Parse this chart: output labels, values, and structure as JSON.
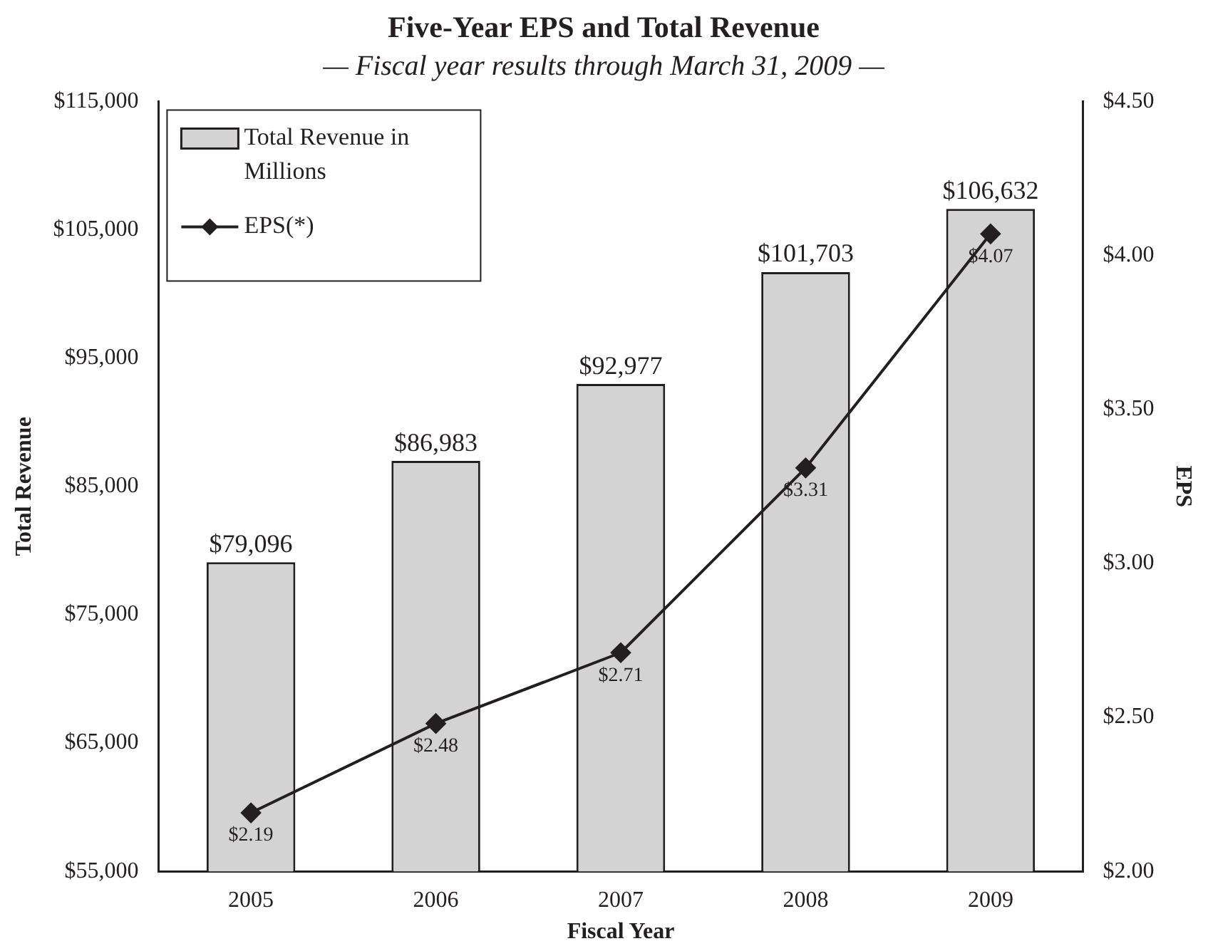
{
  "chart_data": {
    "type": "bar",
    "title": "Five-Year EPS and Total Revenue",
    "subtitle": "— Fiscal year results through March 31, 2009 —",
    "xlabel": "Fiscal Year",
    "ylabel": "Total Revenue",
    "y2label": "EPS",
    "categories": [
      "2005",
      "2006",
      "2007",
      "2008",
      "2009"
    ],
    "series": [
      {
        "name": "Total Revenue in Millions",
        "color": "#d3d3d3",
        "values": [
          79096,
          86983,
          92977,
          101703,
          106632
        ],
        "value_labels": [
          "$79,096",
          "$86,983",
          "$92,977",
          "$101,703",
          "$106,632"
        ]
      },
      {
        "name": "EPS(*)",
        "type": "line",
        "axis": "y2",
        "color": "#231f20",
        "marker": "diamond",
        "values": [
          2.19,
          2.48,
          2.71,
          3.31,
          4.07
        ],
        "value_labels": [
          "$2.19",
          "$2.48",
          "$2.71",
          "$3.31",
          "$4.07"
        ]
      }
    ],
    "ylim": [
      55000,
      115000
    ],
    "yticks": [
      {
        "value": 55000,
        "label": "$55,000"
      },
      {
        "value": 65000,
        "label": "$65,000"
      },
      {
        "value": 75000,
        "label": "$75,000"
      },
      {
        "value": 85000,
        "label": "$85,000"
      },
      {
        "value": 95000,
        "label": "$95,000"
      },
      {
        "value": 105000,
        "label": "$105,000"
      },
      {
        "value": 115000,
        "label": "$115,000"
      }
    ],
    "y2lim": [
      2,
      4.5
    ],
    "y2ticks": [
      {
        "value": 2,
        "label": "$2.00"
      },
      {
        "value": 2.5,
        "label": "$2.50"
      },
      {
        "value": 3,
        "label": "$3.00"
      },
      {
        "value": 3.5,
        "label": "$3.50"
      },
      {
        "value": 4,
        "label": "$4.00"
      },
      {
        "value": 4.5,
        "label": "$4.50"
      }
    ],
    "grid": false,
    "legend": "top left",
    "line_style": "solid"
  }
}
